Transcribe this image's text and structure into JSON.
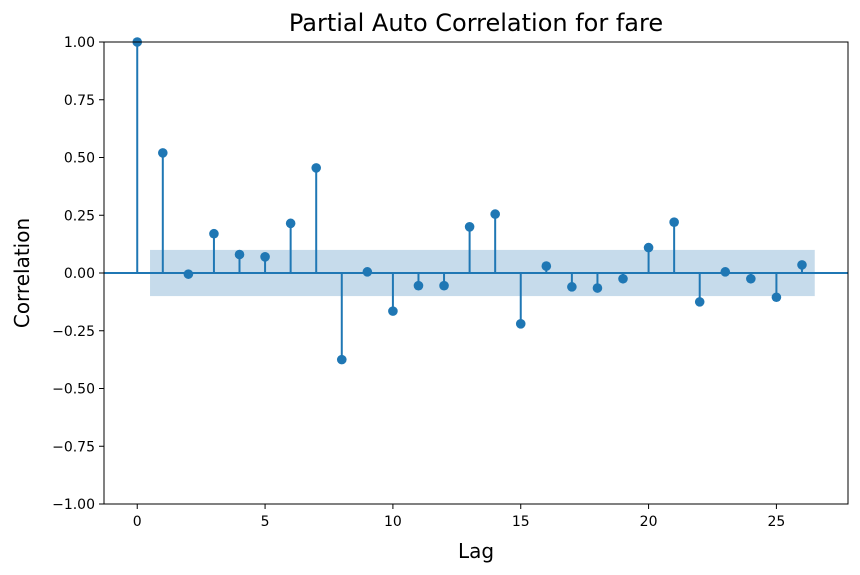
{
  "chart_data": {
    "type": "stem",
    "title": "Partial Auto Correlation for fare",
    "xlabel": "Lag",
    "ylabel": "Correlation",
    "xlim": [
      -1.3,
      27.8
    ],
    "ylim": [
      -1.0,
      1.0
    ],
    "xticks": [
      0,
      5,
      10,
      15,
      20,
      25
    ],
    "xtick_labels": [
      "0",
      "5",
      "10",
      "15",
      "20",
      "25"
    ],
    "yticks": [
      -1.0,
      -0.75,
      -0.5,
      -0.25,
      0.0,
      0.25,
      0.5,
      0.75,
      1.0
    ],
    "ytick_labels": [
      "−1.00",
      "−0.75",
      "−0.50",
      "−0.25",
      "0.00",
      "0.25",
      "0.50",
      "0.75",
      "1.00"
    ],
    "lags": [
      0,
      1,
      2,
      3,
      4,
      5,
      6,
      7,
      8,
      9,
      10,
      11,
      12,
      13,
      14,
      15,
      16,
      17,
      18,
      19,
      20,
      21,
      22,
      23,
      24,
      25,
      26
    ],
    "values": [
      1.0,
      0.52,
      -0.005,
      0.17,
      0.08,
      0.07,
      0.215,
      0.455,
      -0.375,
      0.005,
      -0.165,
      -0.055,
      -0.055,
      0.2,
      0.255,
      -0.22,
      0.03,
      -0.06,
      -0.065,
      -0.025,
      0.11,
      0.22,
      -0.125,
      0.005,
      -0.025,
      -0.105,
      0.035
    ],
    "confidence_band": {
      "x_start": 0.5,
      "x_end": 26.5,
      "lower": -0.1,
      "upper": 0.1
    },
    "grid": false,
    "colors": {
      "stem": "#1f77b4",
      "band": "#c6dbeb",
      "axis": "#000000"
    }
  }
}
